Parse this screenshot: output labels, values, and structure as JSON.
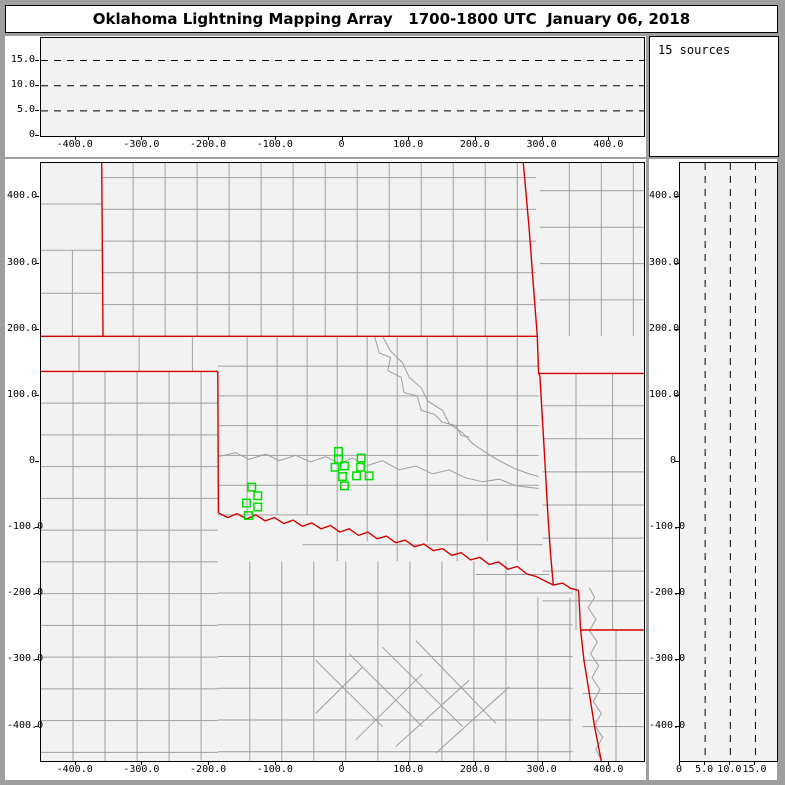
{
  "window": {
    "title": "Oklahoma Lightning Mapping Array   1700-1800 UTC  January 06, 2018"
  },
  "sources_box": {
    "label": "15 sources"
  },
  "colors": {
    "frame": "#9e9e9e",
    "panel_surface": "#ffffff",
    "plot_background": "#f2f2f2",
    "axis": "#000000",
    "county_line": "#9f9f9f",
    "state_border": "#d40000",
    "source_marker": "#00dd00",
    "dashed_grid": "#000000"
  },
  "axes": {
    "km_tick_values": [
      -400,
      -300,
      -200,
      -100,
      0,
      100,
      200,
      300,
      400
    ],
    "km_tick_labels": [
      "-400.0",
      "-300.0",
      "-200.0",
      "-100.0",
      "0",
      "100.0",
      "200.0",
      "300.0",
      "400.0"
    ],
    "alt_tick_values": [
      0,
      5,
      10,
      15
    ],
    "alt_tick_labels": [
      "0",
      "5.0",
      "10.0",
      "15.0"
    ],
    "alt_grid_values": [
      5,
      10,
      15
    ]
  },
  "chart_data": {
    "type": "scatter",
    "title": "Oklahoma Lightning Mapping Array   1700-1800 UTC  January 06, 2018",
    "annotation": "15 sources",
    "legend": "none",
    "panels": [
      {
        "id": "east-west-altitude",
        "position": "top",
        "xlim": [
          -452,
          452
        ],
        "ylim": [
          0,
          19.5
        ],
        "x_ticks": [
          -400,
          -300,
          -200,
          -100,
          0,
          100,
          200,
          300,
          400
        ],
        "y_ticks": [
          0,
          5,
          10,
          15
        ],
        "gridlines": {
          "style": "dashed",
          "orientation": "horizontal",
          "values": [
            5,
            10,
            15
          ]
        },
        "points": []
      },
      {
        "id": "plan-view-map",
        "position": "main",
        "xlim": [
          -452,
          452
        ],
        "ylim": [
          -452,
          452
        ],
        "x_ticks": [
          -400,
          -300,
          -200,
          -100,
          0,
          100,
          200,
          300,
          400
        ],
        "y_ticks": [
          -400,
          -300,
          -200,
          -100,
          0,
          100,
          200,
          300,
          400
        ],
        "marker": "open-square",
        "marker_color": "#00dd00",
        "points_km": [
          [
            -6,
            16
          ],
          [
            28,
            6
          ],
          [
            -6,
            4
          ],
          [
            -11,
            -8
          ],
          [
            3,
            -6
          ],
          [
            27,
            -8
          ],
          [
            0,
            -22
          ],
          [
            21,
            -21
          ],
          [
            40,
            -21
          ],
          [
            3,
            -36
          ],
          [
            -136,
            -38
          ],
          [
            -127,
            -51
          ],
          [
            -144,
            -62
          ],
          [
            -127,
            -68
          ],
          [
            -141,
            -81
          ]
        ]
      },
      {
        "id": "north-south-altitude",
        "position": "right",
        "xlim": [
          0,
          19.5
        ],
        "ylim": [
          -452,
          452
        ],
        "x_ticks": [
          0,
          5,
          10,
          15
        ],
        "y_ticks": [
          -400,
          -300,
          -200,
          -100,
          0,
          100,
          200,
          300,
          400
        ],
        "gridlines": {
          "style": "dashed",
          "orientation": "vertical",
          "values": [
            5,
            10,
            15
          ]
        },
        "points": []
      }
    ]
  },
  "map": {
    "x_range_km": [
      -452,
      452
    ],
    "y_range_km": [
      -452,
      452
    ],
    "sources": [
      [
        -6,
        16
      ],
      [
        28,
        6
      ],
      [
        -6,
        4
      ],
      [
        -11,
        -8
      ],
      [
        3,
        -6
      ],
      [
        27,
        -8
      ],
      [
        0,
        -22
      ],
      [
        21,
        -21
      ],
      [
        40,
        -21
      ],
      [
        3,
        -36
      ],
      [
        -136,
        -38
      ],
      [
        -127,
        -51
      ],
      [
        -144,
        -62
      ],
      [
        -127,
        -68
      ],
      [
        -141,
        -81
      ]
    ],
    "state_borders": [
      [
        [
          -452,
          190
        ],
        [
          292,
          190
        ]
      ],
      [
        [
          -452,
          137
        ],
        [
          -187,
          137
        ]
      ],
      [
        [
          -187,
          137
        ],
        [
          -186,
          -77
        ]
      ],
      [
        [
          -361,
          452
        ],
        [
          -359,
          190
        ]
      ],
      [
        [
          271,
          452
        ],
        [
          280,
          350
        ],
        [
          286,
          268
        ],
        [
          292,
          190
        ],
        [
          294,
          134
        ],
        [
          296,
          130
        ],
        [
          300,
          60
        ],
        [
          304,
          -10
        ],
        [
          308,
          -80
        ],
        [
          312,
          -140
        ],
        [
          316,
          -186
        ]
      ],
      [
        [
          294,
          134
        ],
        [
          452,
          134
        ]
      ],
      [
        [
          -186,
          -77
        ],
        [
          -172,
          -84
        ],
        [
          -158,
          -78
        ],
        [
          -144,
          -86
        ],
        [
          -130,
          -80
        ],
        [
          -116,
          -89
        ],
        [
          -102,
          -84
        ],
        [
          -88,
          -93
        ],
        [
          -74,
          -88
        ],
        [
          -60,
          -97
        ],
        [
          -46,
          -92
        ],
        [
          -32,
          -101
        ],
        [
          -18,
          -96
        ],
        [
          -4,
          -106
        ],
        [
          10,
          -101
        ],
        [
          24,
          -111
        ],
        [
          38,
          -106
        ],
        [
          52,
          -116
        ],
        [
          66,
          -112
        ],
        [
          80,
          -122
        ],
        [
          94,
          -118
        ],
        [
          108,
          -128
        ],
        [
          122,
          -124
        ],
        [
          136,
          -134
        ],
        [
          150,
          -131
        ],
        [
          164,
          -141
        ],
        [
          178,
          -137
        ],
        [
          192,
          -148
        ],
        [
          206,
          -144
        ],
        [
          220,
          -155
        ],
        [
          234,
          -151
        ],
        [
          248,
          -162
        ],
        [
          262,
          -158
        ],
        [
          276,
          -169
        ],
        [
          290,
          -173
        ],
        [
          304,
          -180
        ],
        [
          316,
          -186
        ],
        [
          330,
          -183
        ],
        [
          342,
          -191
        ],
        [
          354,
          -194
        ]
      ],
      [
        [
          354,
          -194
        ],
        [
          357,
          -254
        ]
      ],
      [
        [
          357,
          -254
        ],
        [
          452,
          -254
        ]
      ],
      [
        [
          357,
          -254
        ],
        [
          362,
          -300
        ],
        [
          370,
          -350
        ],
        [
          378,
          -400
        ],
        [
          388,
          -452
        ]
      ]
    ],
    "county_grids": [
      {
        "region": "kansas",
        "vx": [
          -314,
          -266,
          -218,
          -170,
          -122,
          -74,
          -26,
          22,
          70,
          118,
          166,
          214,
          262
        ],
        "vy": [
          190,
          452
        ],
        "hy": [
          238,
          286,
          334,
          382,
          430
        ],
        "hx": [
          -361,
          290
        ]
      },
      {
        "region": "colorado",
        "vx": [
          -405
        ],
        "vy": [
          190,
          320
        ],
        "hy": [
          255,
          320,
          390
        ],
        "hx": [
          -452,
          -361
        ]
      },
      {
        "region": "missouri",
        "vx": [
          340,
          388,
          436
        ],
        "vy": [
          190,
          452
        ],
        "hy": [
          245,
          300,
          355,
          410
        ],
        "hx": [
          296,
          452
        ]
      },
      {
        "region": "texas-panhandle",
        "vx": [
          -404,
          -356,
          -308,
          -260,
          -212
        ],
        "vy": [
          -452,
          137
        ],
        "hy": [
          89,
          41,
          -7,
          -55,
          -103,
          -151,
          -199,
          -247,
          -295,
          -343,
          -391,
          -439
        ],
        "hx": [
          -452,
          -187
        ]
      },
      {
        "region": "texas-south",
        "vx": [
          -139,
          -91,
          -43,
          5,
          53,
          101,
          149,
          197,
          245
        ],
        "vy": [
          -452,
          -150
        ],
        "hy": [
          -198,
          -246,
          -294,
          -342,
          -390,
          -438
        ],
        "hx": [
          -187,
          345
        ]
      },
      {
        "region": "texas-southeast",
        "vx": [
          293,
          341
        ],
        "vy": [
          -452,
          -205
        ],
        "hy": [],
        "hx": [
          0,
          0
        ]
      },
      {
        "region": "oklahoma-panhandle",
        "vx": [
          -395,
          -305,
          -225
        ],
        "vy": [
          137,
          190
        ],
        "hy": [],
        "hx": [
          0,
          0
        ]
      },
      {
        "region": "oklahoma",
        "vx": [
          -143,
          -98,
          -53,
          -8,
          37,
          82,
          127,
          172,
          217,
          262
        ],
        "vy": [
          -80,
          190
        ],
        "hy": [
          145,
          100,
          55,
          10,
          -35,
          -80
        ],
        "hx": [
          -187,
          294
        ]
      },
      {
        "region": "oklahoma-south",
        "vx": [
          -8,
          82,
          172,
          262
        ],
        "vy": [
          -150,
          -80
        ],
        "hy": [
          -125
        ],
        "hx": [
          -60,
          300
        ]
      },
      {
        "region": "oklahoma-southeast",
        "vx": [
          37,
          127,
          217
        ],
        "vy": [
          -120,
          -80
        ],
        "hy": [
          -170
        ],
        "hx": [
          200,
          310
        ]
      },
      {
        "region": "arkansas",
        "vx": [
          350,
          405
        ],
        "vy": [
          -254,
          134
        ],
        "hy": [
          85,
          35,
          -15,
          -65,
          -115,
          -165,
          -210
        ],
        "hx": [
          300,
          452
        ]
      },
      {
        "region": "louisiana",
        "vx": [
          410
        ],
        "vy": [
          -452,
          -254
        ],
        "hy": [
          -300,
          -350,
          -400
        ],
        "hx": [
          360,
          452
        ]
      }
    ],
    "county_segments": [
      [
        -40,
        -300,
        60,
        -400
      ],
      [
        10,
        -290,
        120,
        -400
      ],
      [
        60,
        -280,
        180,
        -400
      ],
      [
        110,
        -270,
        230,
        -395
      ],
      [
        -40,
        -380,
        30,
        -310
      ],
      [
        20,
        -420,
        120,
        -320
      ],
      [
        80,
        -430,
        190,
        -330
      ],
      [
        140,
        -440,
        250,
        -340
      ]
    ],
    "county_polylines": [
      [
        [
          48,
          190
        ],
        [
          55,
          165
        ],
        [
          72,
          158
        ],
        [
          68,
          138
        ],
        [
          88,
          128
        ],
        [
          92,
          105
        ],
        [
          112,
          100
        ],
        [
          118,
          78
        ],
        [
          138,
          72
        ],
        [
          150,
          60
        ],
        [
          170,
          55
        ],
        [
          178,
          40
        ],
        [
          190,
          38
        ]
      ]
    ],
    "rivers": [
      [
        [
          -186,
          8
        ],
        [
          -160,
          14
        ],
        [
          -140,
          4
        ],
        [
          -115,
          12
        ],
        [
          -95,
          2
        ],
        [
          -70,
          10
        ],
        [
          -48,
          0
        ],
        [
          -25,
          8
        ],
        [
          -5,
          -2
        ],
        [
          15,
          6
        ],
        [
          35,
          -6
        ],
        [
          60,
          2
        ],
        [
          85,
          -12
        ],
        [
          110,
          -6
        ],
        [
          135,
          -18
        ],
        [
          160,
          -12
        ],
        [
          185,
          -24
        ],
        [
          210,
          -30
        ],
        [
          235,
          -26
        ],
        [
          260,
          -36
        ],
        [
          294,
          -40
        ]
      ],
      [
        [
          60,
          190
        ],
        [
          72,
          168
        ],
        [
          90,
          150
        ],
        [
          100,
          128
        ],
        [
          118,
          112
        ],
        [
          128,
          92
        ],
        [
          150,
          78
        ],
        [
          160,
          58
        ],
        [
          180,
          44
        ],
        [
          195,
          28
        ],
        [
          215,
          14
        ],
        [
          235,
          2
        ],
        [
          258,
          -10
        ],
        [
          280,
          -18
        ],
        [
          294,
          -22
        ]
      ],
      [
        [
          370,
          -190
        ],
        [
          378,
          -205
        ],
        [
          368,
          -220
        ],
        [
          380,
          -238
        ],
        [
          370,
          -255
        ],
        [
          382,
          -272
        ],
        [
          372,
          -290
        ],
        [
          384,
          -308
        ],
        [
          374,
          -326
        ],
        [
          386,
          -344
        ],
        [
          376,
          -362
        ],
        [
          388,
          -380
        ],
        [
          378,
          -398
        ],
        [
          390,
          -416
        ],
        [
          380,
          -434
        ],
        [
          388,
          -452
        ]
      ]
    ]
  }
}
